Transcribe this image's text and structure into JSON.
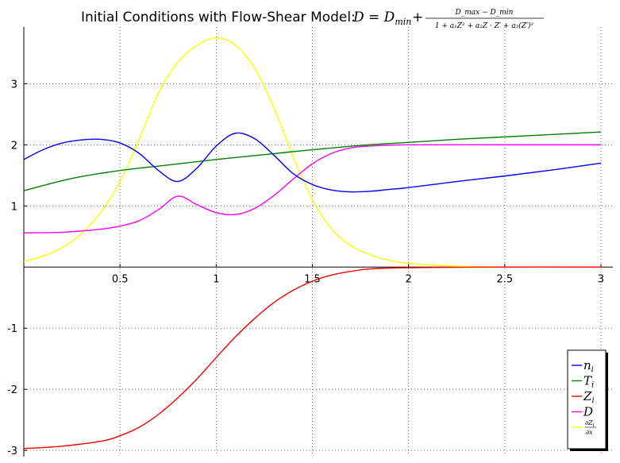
{
  "chart_data": {
    "type": "line",
    "title": "Initial Conditions with Flow-Shear Model:",
    "title_formula": {
      "lhs": "D = D",
      "lhs_sub": "min",
      "plus": "+",
      "numerator": "D_max − D_min",
      "denominator": "1 + a₁Z² + a₂Z · Z′ + a₃(Z′)²"
    },
    "xlim": [
      0,
      3
    ],
    "ylim": [
      -3.05,
      3.85
    ],
    "xticks": [
      0.5,
      1,
      1.5,
      2,
      2.5,
      3
    ],
    "xtick_labels": [
      "0.5",
      "1",
      "1.5",
      "2",
      "2.5",
      "3"
    ],
    "yticks": [
      -3,
      -2,
      -1,
      1,
      2,
      3
    ],
    "ytick_labels": [
      "-3",
      "-2",
      "-1",
      "1",
      "2",
      "3"
    ],
    "grid": true,
    "grid_style": "dotted",
    "legend_placement": "lower-right",
    "series": [
      {
        "name": "n_i",
        "label": "n",
        "label_sub": "i",
        "color": "#0000ff",
        "points": [
          [
            0,
            1.76
          ],
          [
            0.1,
            1.92
          ],
          [
            0.2,
            2.03
          ],
          [
            0.3,
            2.08
          ],
          [
            0.4,
            2.09
          ],
          [
            0.5,
            2.03
          ],
          [
            0.6,
            1.86
          ],
          [
            0.7,
            1.58
          ],
          [
            0.8,
            1.4
          ],
          [
            0.9,
            1.62
          ],
          [
            1.0,
            1.98
          ],
          [
            1.1,
            2.19
          ],
          [
            1.2,
            2.1
          ],
          [
            1.3,
            1.83
          ],
          [
            1.4,
            1.53
          ],
          [
            1.5,
            1.35
          ],
          [
            1.6,
            1.26
          ],
          [
            1.7,
            1.23
          ],
          [
            1.8,
            1.24
          ],
          [
            1.9,
            1.27
          ],
          [
            2.0,
            1.3
          ],
          [
            2.25,
            1.4
          ],
          [
            2.5,
            1.49
          ],
          [
            2.75,
            1.59
          ],
          [
            3.0,
            1.7
          ]
        ]
      },
      {
        "name": "T_i",
        "label": "T",
        "label_sub": "i",
        "color": "#008000",
        "points": [
          [
            0,
            1.25
          ],
          [
            0.25,
            1.45
          ],
          [
            0.5,
            1.58
          ],
          [
            0.75,
            1.67
          ],
          [
            1.0,
            1.76
          ],
          [
            1.25,
            1.84
          ],
          [
            1.5,
            1.92
          ],
          [
            1.75,
            1.99
          ],
          [
            2.0,
            2.04
          ],
          [
            2.25,
            2.09
          ],
          [
            2.5,
            2.13
          ],
          [
            2.75,
            2.17
          ],
          [
            3.0,
            2.21
          ]
        ]
      },
      {
        "name": "Z_i",
        "label": "Z",
        "label_sub": "i",
        "color": "#ff0000",
        "points": [
          [
            0,
            -2.97
          ],
          [
            0.2,
            -2.93
          ],
          [
            0.4,
            -2.85
          ],
          [
            0.5,
            -2.76
          ],
          [
            0.6,
            -2.62
          ],
          [
            0.7,
            -2.41
          ],
          [
            0.8,
            -2.14
          ],
          [
            0.9,
            -1.83
          ],
          [
            1.0,
            -1.48
          ],
          [
            1.1,
            -1.14
          ],
          [
            1.2,
            -0.84
          ],
          [
            1.3,
            -0.58
          ],
          [
            1.4,
            -0.38
          ],
          [
            1.5,
            -0.23
          ],
          [
            1.6,
            -0.13
          ],
          [
            1.7,
            -0.07
          ],
          [
            1.8,
            -0.03
          ],
          [
            2.0,
            -0.01
          ],
          [
            2.5,
            0.0
          ],
          [
            3.0,
            0.0
          ]
        ]
      },
      {
        "name": "D",
        "label": "D",
        "label_sub": "",
        "color": "#ff00ff",
        "points": [
          [
            0,
            0.56
          ],
          [
            0.2,
            0.57
          ],
          [
            0.4,
            0.62
          ],
          [
            0.5,
            0.67
          ],
          [
            0.6,
            0.76
          ],
          [
            0.7,
            0.94
          ],
          [
            0.8,
            1.16
          ],
          [
            0.9,
            1.02
          ],
          [
            1.0,
            0.89
          ],
          [
            1.1,
            0.86
          ],
          [
            1.2,
            0.96
          ],
          [
            1.3,
            1.17
          ],
          [
            1.4,
            1.44
          ],
          [
            1.5,
            1.69
          ],
          [
            1.6,
            1.86
          ],
          [
            1.7,
            1.95
          ],
          [
            1.8,
            1.98
          ],
          [
            2.0,
            2.0
          ],
          [
            2.5,
            2.0
          ],
          [
            3.0,
            2.0
          ]
        ]
      },
      {
        "name": "dZ_i/dx",
        "label": "∂Z",
        "label_sub": "i",
        "label_den": "∂x",
        "color": "#ffff00",
        "points": [
          [
            0,
            0.09
          ],
          [
            0.1,
            0.18
          ],
          [
            0.2,
            0.32
          ],
          [
            0.3,
            0.55
          ],
          [
            0.4,
            0.9
          ],
          [
            0.5,
            1.4
          ],
          [
            0.6,
            2.1
          ],
          [
            0.7,
            2.85
          ],
          [
            0.8,
            3.35
          ],
          [
            0.9,
            3.63
          ],
          [
            1.0,
            3.75
          ],
          [
            1.1,
            3.63
          ],
          [
            1.2,
            3.25
          ],
          [
            1.3,
            2.6
          ],
          [
            1.4,
            1.8
          ],
          [
            1.5,
            1.1
          ],
          [
            1.6,
            0.62
          ],
          [
            1.7,
            0.35
          ],
          [
            1.8,
            0.2
          ],
          [
            1.9,
            0.11
          ],
          [
            2.0,
            0.06
          ],
          [
            2.2,
            0.02
          ],
          [
            2.5,
            0.0
          ],
          [
            3.0,
            0.0
          ]
        ]
      }
    ]
  }
}
